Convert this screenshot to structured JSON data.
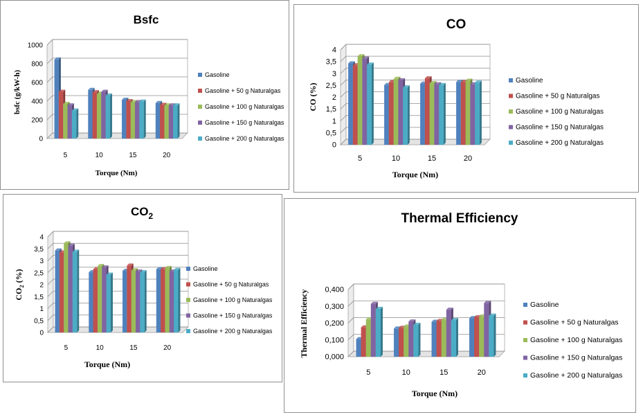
{
  "colors": {
    "series": [
      "#4f81bd",
      "#c0504d",
      "#9bbb59",
      "#8064a2",
      "#4bacc6"
    ],
    "grid": "#8c8c8c"
  },
  "chart_data": [
    {
      "id": "bsfc",
      "type": "bar",
      "title": "Bsfc",
      "xlabel": "Torque (Nm)",
      "ylabel": "bsfc  (g/kW-h)",
      "categories": [
        "5",
        "10",
        "15",
        "20"
      ],
      "ylim": [
        0,
        1000
      ],
      "yticks": [
        "0",
        "200",
        "400",
        "600",
        "800",
        "1000"
      ],
      "grid": true,
      "legend": "right",
      "series": [
        {
          "name": "Gasoline",
          "values": [
            845,
            520,
            415,
            380
          ]
        },
        {
          "name": "Gasoline + 50 g Naturalgas",
          "values": [
            500,
            495,
            400,
            360
          ]
        },
        {
          "name": "Gasoline + 100 g Naturalgas",
          "values": [
            370,
            480,
            390,
            355
          ]
        },
        {
          "name": "Gasoline + 150 g Naturalgas",
          "values": [
            355,
            500,
            390,
            355
          ]
        },
        {
          "name": "Gasoline + 200 g Naturalgas",
          "values": [
            300,
            460,
            395,
            355
          ]
        }
      ]
    },
    {
      "id": "co",
      "type": "bar",
      "title": "CO",
      "xlabel": "Torque (Nm)",
      "ylabel": "CO (%)",
      "categories": [
        "5",
        "10",
        "15",
        "20"
      ],
      "ylim": [
        0,
        4
      ],
      "yticks": [
        "0",
        "0,5",
        "1",
        "1,5",
        "2",
        "2,5",
        "3",
        "3,5",
        "4"
      ],
      "grid": true,
      "legend": "right",
      "series": [
        {
          "name": "Gasoline",
          "values": [
            3.43,
            2.52,
            2.58,
            2.65
          ]
        },
        {
          "name": "Gasoline + 50 g Naturalgas",
          "values": [
            3.35,
            2.65,
            2.8,
            2.65
          ]
        },
        {
          "name": "Gasoline + 100 g Naturalgas",
          "values": [
            3.73,
            2.78,
            2.6,
            2.7
          ]
        },
        {
          "name": "Gasoline + 150 g Naturalgas",
          "values": [
            3.63,
            2.72,
            2.55,
            2.55
          ]
        },
        {
          "name": "Gasoline + 200 g Naturalgas",
          "values": [
            3.38,
            2.42,
            2.52,
            2.62
          ]
        }
      ]
    },
    {
      "id": "co2",
      "type": "bar",
      "title": "CO2",
      "xlabel": "Torque (Nm)",
      "ylabel": "CO2 (%)",
      "categories": [
        "5",
        "10",
        "15",
        "20"
      ],
      "ylim": [
        0,
        4
      ],
      "yticks": [
        "0",
        "0,5",
        "1",
        "1,5",
        "2",
        "2,5",
        "3",
        "3,5",
        "4"
      ],
      "grid": true,
      "legend": "right",
      "series": [
        {
          "name": "Gasoline",
          "values": [
            3.43,
            2.52,
            2.58,
            2.65
          ]
        },
        {
          "name": "Gasoline + 50 g Naturalgas",
          "values": [
            3.35,
            2.65,
            2.8,
            2.65
          ]
        },
        {
          "name": "Gasoline + 100 g Naturalgas",
          "values": [
            3.73,
            2.78,
            2.6,
            2.7
          ]
        },
        {
          "name": "Gasoline + 150 g Naturalgas",
          "values": [
            3.63,
            2.72,
            2.55,
            2.55
          ]
        },
        {
          "name": "Gasoline + 200 g Naturalgas",
          "values": [
            3.38,
            2.42,
            2.52,
            2.62
          ]
        }
      ]
    },
    {
      "id": "thermal",
      "type": "bar",
      "title": "Thermal Efficiency",
      "xlabel": "Torque (Nm)",
      "ylabel": "Thermal Efficiency",
      "categories": [
        "5",
        "10",
        "15",
        "20"
      ],
      "ylim": [
        0,
        0.4
      ],
      "yticks": [
        "0,000",
        "0,100",
        "0,200",
        "0,300",
        "0,400"
      ],
      "grid": true,
      "legend": "right",
      "series": [
        {
          "name": "Gasoline",
          "values": [
            0.105,
            0.168,
            0.208,
            0.23
          ]
        },
        {
          "name": "Gasoline + 50 g Naturalgas",
          "values": [
            0.175,
            0.172,
            0.213,
            0.235
          ]
        },
        {
          "name": "Gasoline + 100 g Naturalgas",
          "values": [
            0.222,
            0.18,
            0.22,
            0.24
          ]
        },
        {
          "name": "Gasoline + 150 g Naturalgas",
          "values": [
            0.315,
            0.21,
            0.28,
            0.32
          ]
        },
        {
          "name": "Gasoline + 200 g Naturalgas",
          "values": [
            0.285,
            0.19,
            0.218,
            0.245
          ]
        }
      ]
    }
  ]
}
